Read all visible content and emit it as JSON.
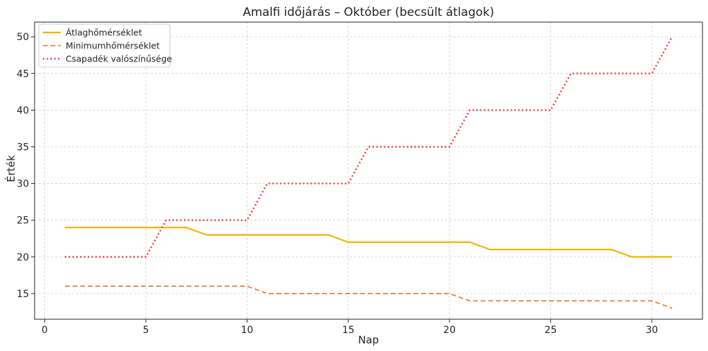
{
  "chart_data": {
    "type": "line",
    "title": "Amalfi időjárás – Október (becsült átlagok)",
    "xlabel": "Nap",
    "ylabel": "Érték",
    "xlim": [
      -0.5,
      32.5
    ],
    "ylim": [
      11.5,
      52
    ],
    "xticks": [
      0,
      5,
      10,
      15,
      20,
      25,
      30
    ],
    "yticks": [
      15,
      20,
      25,
      30,
      35,
      40,
      45,
      50
    ],
    "grid": true,
    "legend_position": "top-left",
    "x": [
      1,
      2,
      3,
      4,
      5,
      6,
      7,
      8,
      9,
      10,
      11,
      12,
      13,
      14,
      15,
      16,
      17,
      18,
      19,
      20,
      21,
      22,
      23,
      24,
      25,
      26,
      27,
      28,
      29,
      30,
      31
    ],
    "series": [
      {
        "name": "Átlaghőmérséklet",
        "color": "#f0b400",
        "style": "solid",
        "values": [
          24,
          24,
          24,
          24,
          24,
          24,
          24,
          23,
          23,
          23,
          23,
          23,
          23,
          23,
          22,
          22,
          22,
          22,
          22,
          22,
          22,
          21,
          21,
          21,
          21,
          21,
          21,
          21,
          20,
          20,
          20
        ]
      },
      {
        "name": "Minimumhőmérséklet",
        "color": "#e8731f",
        "style": "dashed",
        "values": [
          16,
          16,
          16,
          16,
          16,
          16,
          16,
          16,
          16,
          16,
          15,
          15,
          15,
          15,
          15,
          15,
          15,
          15,
          15,
          15,
          14,
          14,
          14,
          14,
          14,
          14,
          14,
          14,
          14,
          14,
          13
        ]
      },
      {
        "name": "Csapadék valószínűsége",
        "color": "#ee3344",
        "style": "dotted",
        "values": [
          20,
          20,
          20,
          20,
          20,
          25,
          25,
          25,
          25,
          25,
          30,
          30,
          30,
          30,
          30,
          35,
          35,
          35,
          35,
          35,
          40,
          40,
          40,
          40,
          40,
          45,
          45,
          45,
          45,
          45,
          50
        ]
      }
    ]
  }
}
